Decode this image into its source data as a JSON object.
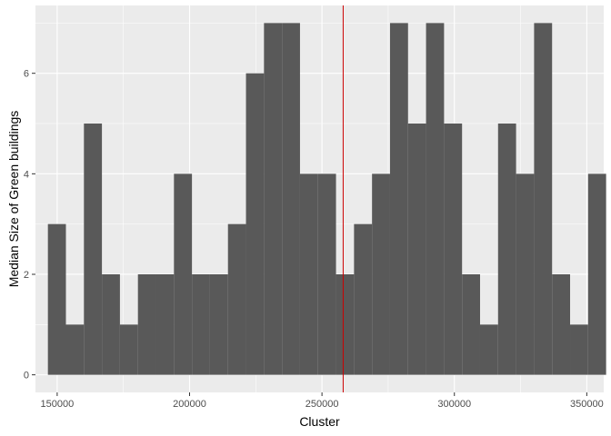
{
  "chart_data": {
    "type": "bar",
    "xlabel": "Cluster",
    "ylabel": "Median Size of Green buildings",
    "xlim": [
      141800,
      356400
    ],
    "ylim": [
      -0.35,
      7.35
    ],
    "x_ticks": [
      150000,
      200000,
      250000,
      300000,
      350000
    ],
    "y_ticks": [
      0,
      2,
      4,
      6
    ],
    "bin_start": 146500,
    "bin_width": 6800,
    "values": [
      3,
      1,
      5,
      2,
      1,
      2,
      2,
      4,
      2,
      2,
      3,
      6,
      7,
      7,
      4,
      4,
      2,
      3,
      4,
      7,
      5,
      7,
      5,
      2,
      1,
      5,
      4,
      7,
      2,
      1,
      4
    ],
    "vline": {
      "x": 258000,
      "color": "#cc0000"
    },
    "grid": true,
    "colors": {
      "bar": "#595959",
      "panel": "#ebebeb",
      "grid": "#ffffff"
    }
  }
}
